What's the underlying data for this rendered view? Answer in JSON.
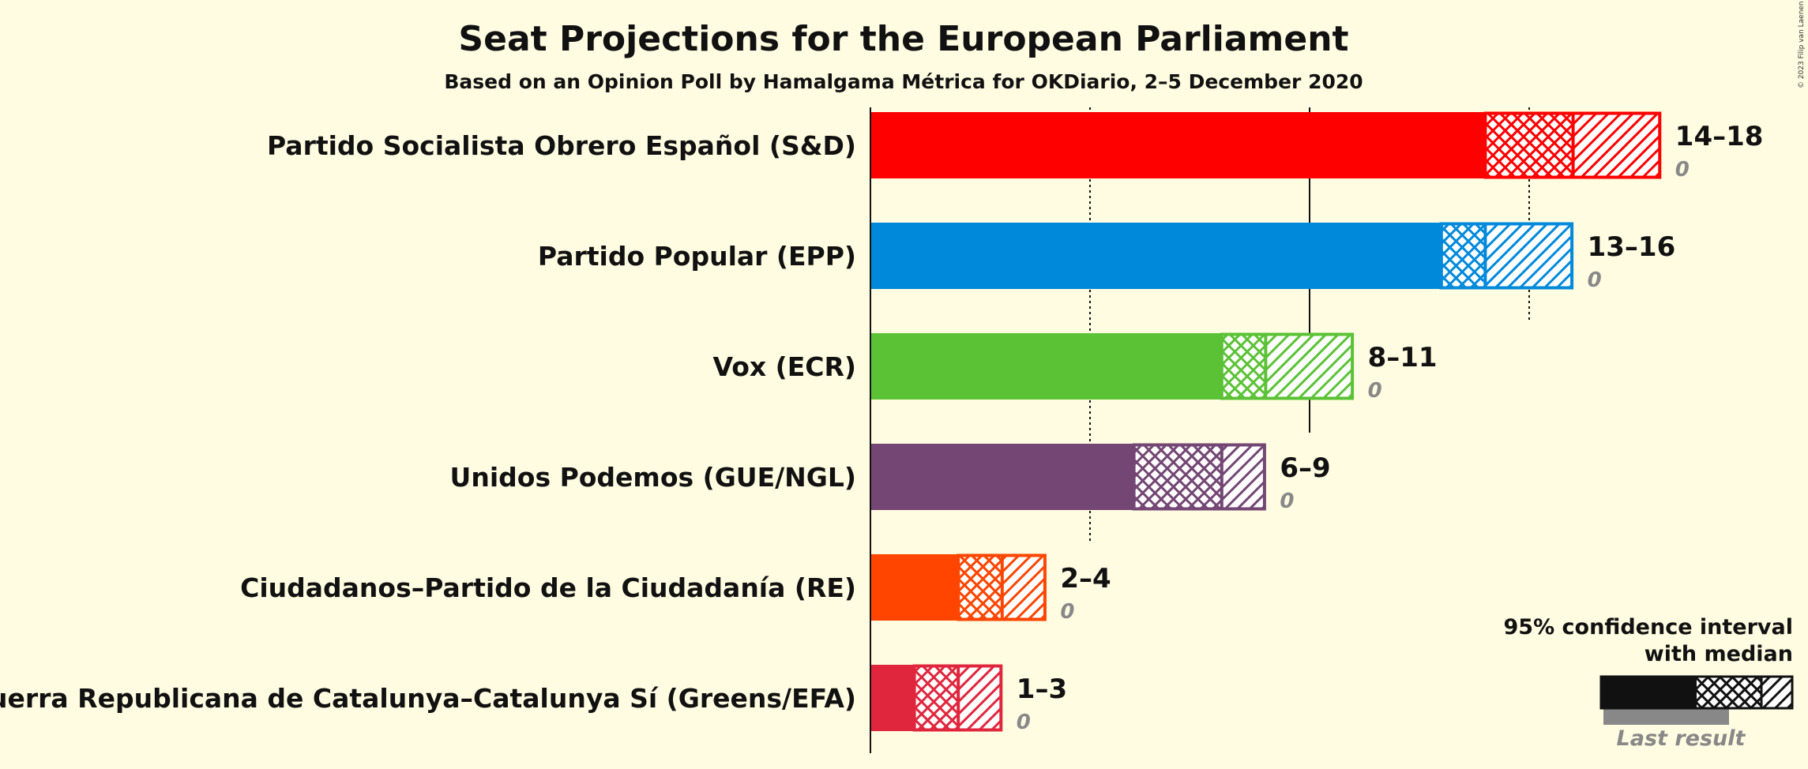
{
  "chart_data": {
    "type": "bar",
    "orientation": "horizontal",
    "title": "Seat Projections for the European Parliament",
    "subtitle": "Based on an Opinion Poll by Hamalgama Métrica for OKDiario, 2–5 December 2020",
    "xlim": [
      0,
      18
    ],
    "gridlines": {
      "solid": [
        10
      ],
      "dotted": [
        5,
        15
      ]
    },
    "series": [
      {
        "party": "Partido Socialista Obrero Español (S&D)",
        "color": "#FF0000",
        "low": 14,
        "median": 16,
        "high": 18,
        "range_label": "14–18",
        "last_result": "0"
      },
      {
        "party": "Partido Popular (EPP)",
        "color": "#0089DB",
        "low": 13,
        "median": 14,
        "high": 16,
        "range_label": "13–16",
        "last_result": "0"
      },
      {
        "party": "Vox (ECR)",
        "color": "#5BC236",
        "low": 8,
        "median": 9,
        "high": 11,
        "range_label": "8–11",
        "last_result": "0"
      },
      {
        "party": "Unidos Podemos (GUE/NGL)",
        "color": "#734673",
        "low": 6,
        "median": 8,
        "high": 9,
        "range_label": "6–9",
        "last_result": "0"
      },
      {
        "party": "Ciudadanos–Partido de la Ciudadanía (RE)",
        "color": "#FF4500",
        "low": 2,
        "median": 3,
        "high": 4,
        "range_label": "2–4",
        "last_result": "0"
      },
      {
        "party": "Esquerra Republicana de Catalunya–Catalunya Sí (Greens/EFA)",
        "color": "#E0263D",
        "low": 1,
        "median": 2,
        "high": 3,
        "range_label": "1–3",
        "last_result": "0"
      }
    ],
    "legend": {
      "position": "bottom-right",
      "line1": "95% confidence interval",
      "line2": "with median",
      "last_result_label": "Last result"
    },
    "copyright": "© 2023 Filip van Laenen"
  }
}
